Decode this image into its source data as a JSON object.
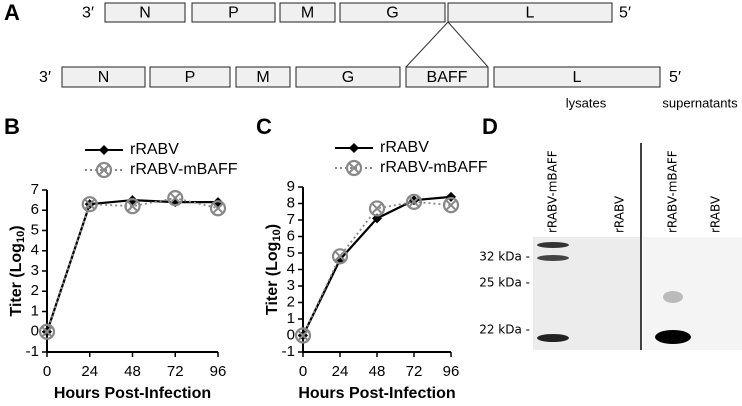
{
  "panel_labels": {
    "a": "A",
    "b": "B",
    "c": "C",
    "d": "D"
  },
  "genome": {
    "top": {
      "left_end": "3′",
      "right_end": "5′",
      "genes": [
        "N",
        "P",
        "M",
        "G",
        "L"
      ]
    },
    "bottom": {
      "left_end": "3′",
      "right_end": "5′",
      "genes": [
        "N",
        "P",
        "M",
        "G",
        "BAFF",
        "L"
      ]
    }
  },
  "chart_data": [
    {
      "type": "line",
      "x_label": "Hours Post-Infection",
      "y_label": "Titer (Log10)",
      "x": [
        0,
        24,
        48,
        72,
        96
      ],
      "xlim": [
        0,
        96
      ],
      "xticks": [
        0,
        24,
        48,
        72,
        96
      ],
      "ylim": [
        -1,
        7
      ],
      "yticks": [
        -1,
        0,
        1,
        2,
        3,
        4,
        5,
        6,
        7
      ],
      "series": [
        {
          "name": "rRABV",
          "color": "#000000",
          "values": [
            0,
            6.3,
            6.5,
            6.4,
            6.4
          ]
        },
        {
          "name": "rRABV-mBAFF",
          "color": "#888888",
          "values": [
            0,
            6.3,
            6.2,
            6.6,
            6.1
          ]
        }
      ]
    },
    {
      "type": "line",
      "x_label": "Hours Post-Infection",
      "y_label": "Titer (Log10)",
      "x": [
        0,
        24,
        48,
        72,
        96
      ],
      "xlim": [
        0,
        96
      ],
      "xticks": [
        0,
        24,
        48,
        72,
        96
      ],
      "ylim": [
        -1,
        9
      ],
      "yticks": [
        -1,
        0,
        1,
        2,
        3,
        4,
        5,
        6,
        7,
        8,
        9
      ],
      "series": [
        {
          "name": "rRABV",
          "color": "#000000",
          "values": [
            0,
            4.6,
            7.1,
            8.2,
            8.4
          ]
        },
        {
          "name": "rRABV-mBAFF",
          "color": "#888888",
          "values": [
            0,
            4.8,
            7.7,
            8.1,
            7.9
          ]
        }
      ]
    }
  ],
  "blot": {
    "groups": [
      "lysates",
      "supernatants"
    ],
    "lanes": [
      "rRABV-mBAFF",
      "rRABV",
      "rRABV-mBAFF",
      "rRABV"
    ],
    "markers": [
      "32 kDa -",
      "25 kDa -",
      "22 kDa -"
    ]
  }
}
